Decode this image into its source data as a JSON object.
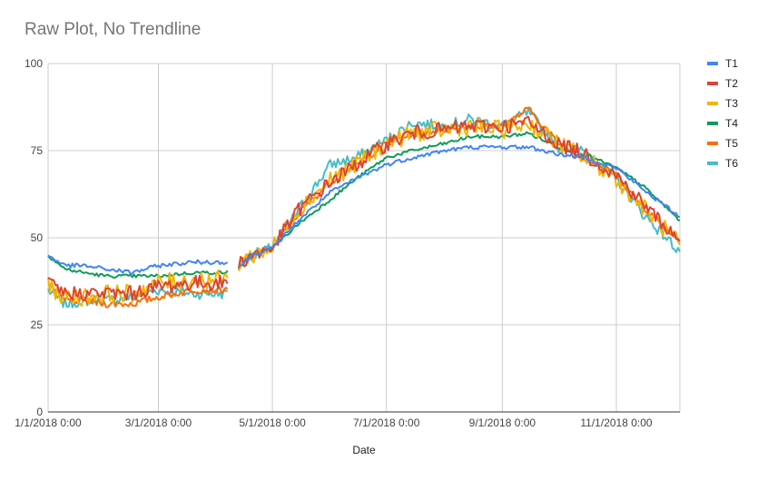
{
  "chart_data": {
    "type": "line",
    "title": "Raw Plot, No Trendline",
    "xlabel": "Date",
    "ylabel": "",
    "ylim": [
      0,
      100
    ],
    "yticks": [
      0,
      25,
      50,
      75,
      100
    ],
    "xlim": [
      "2018-01-01",
      "2018-12-05"
    ],
    "xticks": [
      "1/1/2018 0:00",
      "3/1/2018 0:00",
      "5/1/2018 0:00",
      "7/1/2018 0:00",
      "9/1/2018 0:00",
      "11/1/2018 0:00"
    ],
    "xtick_dates": [
      "2018-01-01",
      "2018-03-01",
      "2018-05-01",
      "2018-07-01",
      "2018-09-01",
      "2018-11-01"
    ],
    "grid": true,
    "legend_position": "right",
    "gap": [
      "2018-04-07",
      "2018-04-13"
    ],
    "series": [
      {
        "name": "T1",
        "color": "#4285F4",
        "x": [
          "2018-01-01",
          "2018-01-10",
          "2018-01-20",
          "2018-02-01",
          "2018-02-15",
          "2018-03-01",
          "2018-03-20",
          "2018-04-06",
          "2018-04-14",
          "2018-04-20",
          "2018-05-01",
          "2018-05-15",
          "2018-06-01",
          "2018-06-15",
          "2018-07-01",
          "2018-07-15",
          "2018-08-01",
          "2018-08-15",
          "2018-09-01",
          "2018-09-15",
          "2018-10-01",
          "2018-10-15",
          "2018-11-01",
          "2018-11-15",
          "2018-12-05"
        ],
        "values": [
          45,
          42,
          42,
          41,
          40,
          42,
          43,
          43,
          42,
          45,
          47,
          55,
          63,
          67,
          71,
          73,
          75,
          76,
          76,
          76,
          74,
          73,
          70,
          64,
          56
        ]
      },
      {
        "name": "T2",
        "color": "#DB4437",
        "x": [
          "2018-01-01",
          "2018-01-10",
          "2018-01-20",
          "2018-02-01",
          "2018-02-15",
          "2018-03-01",
          "2018-03-20",
          "2018-04-06",
          "2018-04-14",
          "2018-04-20",
          "2018-05-01",
          "2018-05-15",
          "2018-06-01",
          "2018-06-15",
          "2018-07-01",
          "2018-07-15",
          "2018-08-01",
          "2018-08-15",
          "2018-09-01",
          "2018-09-15",
          "2018-10-01",
          "2018-10-15",
          "2018-11-01",
          "2018-11-15",
          "2018-12-05"
        ],
        "values": [
          37,
          34,
          34,
          34,
          34,
          36,
          37,
          37,
          43,
          45,
          47,
          58,
          66,
          71,
          77,
          80,
          81,
          82,
          82,
          83,
          77,
          74,
          68,
          60,
          49
        ]
      },
      {
        "name": "T3",
        "color": "#F4B400",
        "x": [
          "2018-01-01",
          "2018-01-10",
          "2018-01-20",
          "2018-02-01",
          "2018-02-15",
          "2018-03-01",
          "2018-03-20",
          "2018-04-06",
          "2018-04-14",
          "2018-04-20",
          "2018-05-01",
          "2018-05-15",
          "2018-06-01",
          "2018-06-15",
          "2018-07-01",
          "2018-07-15",
          "2018-08-01",
          "2018-08-15",
          "2018-09-01",
          "2018-09-15",
          "2018-10-01",
          "2018-10-15",
          "2018-11-01",
          "2018-11-15",
          "2018-12-05"
        ],
        "values": [
          36,
          33,
          33,
          34,
          34,
          37,
          38,
          38,
          43,
          45,
          47,
          58,
          67,
          71,
          77,
          80,
          81,
          82,
          81,
          83,
          77,
          73,
          67,
          59,
          48
        ]
      },
      {
        "name": "T4",
        "color": "#0F9D58",
        "x": [
          "2018-01-01",
          "2018-01-10",
          "2018-01-20",
          "2018-02-01",
          "2018-02-15",
          "2018-03-01",
          "2018-03-20",
          "2018-04-06",
          "2018-04-14",
          "2018-04-20",
          "2018-05-01",
          "2018-05-15",
          "2018-06-01",
          "2018-06-15",
          "2018-07-01",
          "2018-07-15",
          "2018-08-01",
          "2018-08-15",
          "2018-09-01",
          "2018-09-15",
          "2018-10-01",
          "2018-10-15",
          "2018-11-01",
          "2018-11-15",
          "2018-12-05"
        ],
        "values": [
          45,
          41,
          40,
          39,
          39,
          39,
          40,
          40,
          42,
          45,
          47,
          54,
          61,
          67,
          73,
          75,
          77,
          79,
          79,
          80,
          76,
          74,
          70,
          65,
          55
        ]
      },
      {
        "name": "T5",
        "color": "#FF6D00",
        "x": [
          "2018-01-01",
          "2018-01-10",
          "2018-01-20",
          "2018-02-01",
          "2018-02-15",
          "2018-03-01",
          "2018-03-20",
          "2018-04-06",
          "2018-04-14",
          "2018-04-20",
          "2018-05-01",
          "2018-05-15",
          "2018-06-01",
          "2018-06-15",
          "2018-07-01",
          "2018-07-15",
          "2018-08-01",
          "2018-08-15",
          "2018-09-01",
          "2018-09-15",
          "2018-10-01",
          "2018-10-15",
          "2018-11-01",
          "2018-11-15",
          "2018-12-05"
        ],
        "values": [
          37,
          32,
          32,
          31,
          31,
          33,
          35,
          35,
          43,
          45,
          47,
          57,
          66,
          71,
          77,
          80,
          81,
          82,
          82,
          87,
          77,
          73,
          68,
          59,
          49
        ]
      },
      {
        "name": "T6",
        "color": "#46BDC6",
        "x": [
          "2018-01-01",
          "2018-01-10",
          "2018-01-20",
          "2018-02-01",
          "2018-02-15",
          "2018-03-01",
          "2018-03-20",
          "2018-04-06",
          "2018-04-14",
          "2018-04-20",
          "2018-05-01",
          "2018-05-15",
          "2018-06-01",
          "2018-06-15",
          "2018-07-01",
          "2018-07-15",
          "2018-08-01",
          "2018-08-15",
          "2018-09-01",
          "2018-09-15",
          "2018-10-01",
          "2018-10-15",
          "2018-11-01",
          "2018-11-15",
          "2018-12-05"
        ],
        "values": [
          35,
          31,
          32,
          32,
          33,
          35,
          34,
          34,
          43,
          45,
          47,
          58,
          71,
          73,
          78,
          83,
          82,
          84,
          82,
          86,
          76,
          75,
          67,
          57,
          46
        ]
      }
    ]
  }
}
